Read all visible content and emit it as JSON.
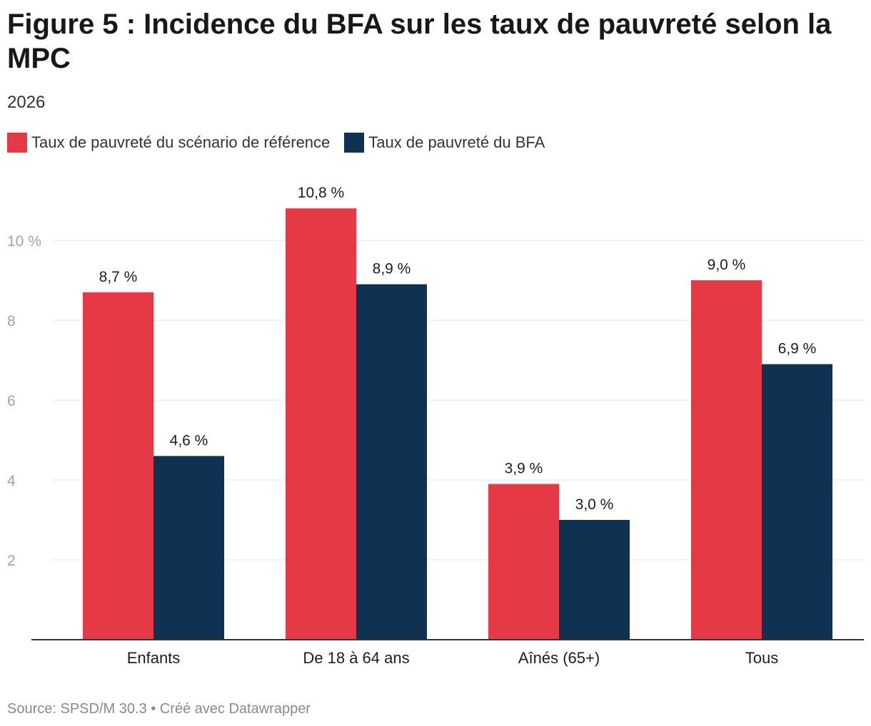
{
  "header": {
    "title": "Figure 5 : Incidence du BFA sur les taux de pauvreté selon la MPC",
    "subtitle": "2026"
  },
  "legend": [
    {
      "label": "Taux de pauvreté du scénario de référence",
      "color": "#e63946"
    },
    {
      "label": "Taux de pauvreté du BFA",
      "color": "#0f3152"
    }
  ],
  "footer": {
    "source": "Source: SPSD/M 30.3 • Créé avec Datawrapper"
  },
  "chart_data": {
    "type": "bar",
    "title": "Figure 5 : Incidence du BFA sur les taux de pauvreté selon la MPC",
    "subtitle": "2026",
    "categories": [
      "Enfants",
      "De 18 à 64 ans",
      "Aînés (65+)",
      "Tous"
    ],
    "series": [
      {
        "name": "Taux de pauvreté du scénario de référence",
        "color": "#e63946",
        "values": [
          8.7,
          10.8,
          3.9,
          9.0
        ],
        "labels": [
          "8,7 %",
          "10,8 %",
          "3,9 %",
          "9,0 %"
        ]
      },
      {
        "name": "Taux de pauvreté du BFA",
        "color": "#0f3152",
        "values": [
          4.6,
          8.9,
          3.0,
          6.9
        ],
        "labels": [
          "4,6 %",
          "8,9 %",
          "3,0 %",
          "6,9 %"
        ]
      }
    ],
    "ylim": [
      0,
      12
    ],
    "yticks": [
      {
        "value": 2,
        "label": "2"
      },
      {
        "value": 4,
        "label": "4"
      },
      {
        "value": 6,
        "label": "6"
      },
      {
        "value": 8,
        "label": "8"
      },
      {
        "value": 10,
        "label": "10 %"
      }
    ],
    "grid": true,
    "legend_position": "top-left"
  }
}
